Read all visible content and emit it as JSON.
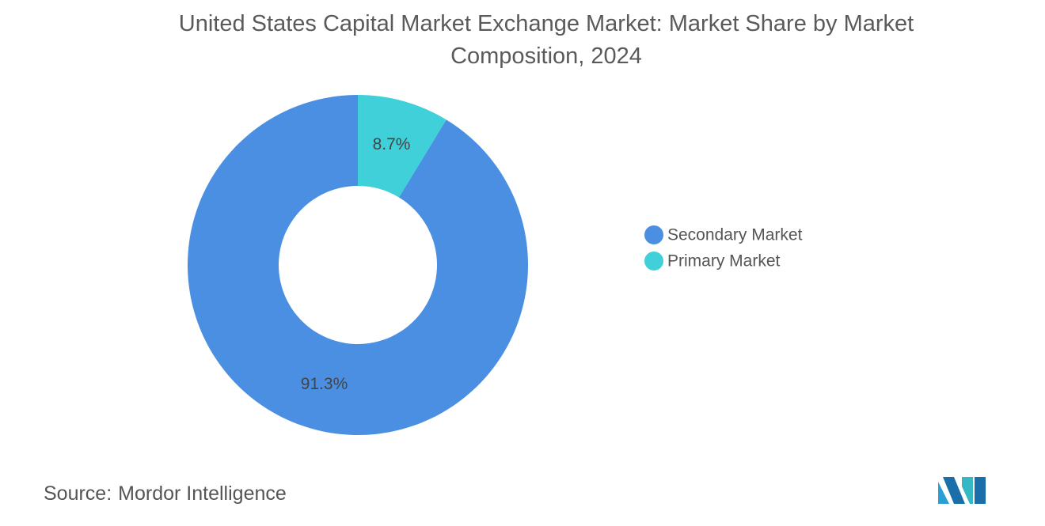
{
  "chart_data": {
    "type": "pie",
    "donut": true,
    "title": "United States Capital Market Exchange Market: Market Share by Market Composition, 2024",
    "categories": [
      "Secondary Market",
      "Primary Market"
    ],
    "values": [
      91.3,
      8.7
    ],
    "value_labels": [
      "91.3%",
      "8.7%"
    ],
    "colors": [
      "#4a8fe2",
      "#3fd0d9"
    ],
    "source_label": "Source:",
    "source": "Mordor Intelligence"
  }
}
